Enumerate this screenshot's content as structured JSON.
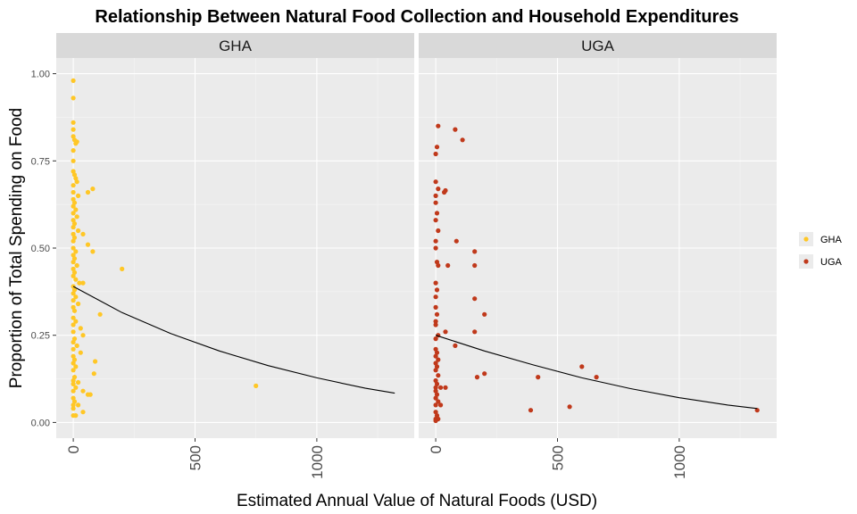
{
  "chart_data": {
    "type": "scatter",
    "title": "Relationship Between Natural Food Collection and Household Expenditures",
    "xlabel": "Estimated Annual Value of Natural Foods (USD)",
    "ylabel": "Proportion of Total Spending on Food",
    "xlim": [
      -70,
      1400
    ],
    "ylim": [
      -0.045,
      1.045
    ],
    "x_ticks": [
      0,
      500,
      1000
    ],
    "y_ticks": [
      0,
      0.25,
      0.5,
      0.75,
      1.0
    ],
    "x_tick_labels": [
      "0",
      "500",
      "1000"
    ],
    "y_tick_labels": [
      "0.00",
      "0.25",
      "0.50",
      "0.75",
      "1.00"
    ],
    "grid": true,
    "legend_position": "right",
    "legend": [
      {
        "name": "GHA",
        "color": "#FFC726"
      },
      {
        "name": "UGA",
        "color": "#C0391B"
      }
    ],
    "panels": [
      {
        "name": "GHA",
        "color": "#FFC726",
        "points": [
          [
            0,
            0.98
          ],
          [
            0,
            0.93
          ],
          [
            0,
            0.86
          ],
          [
            0,
            0.84
          ],
          [
            0,
            0.82
          ],
          [
            5,
            0.81
          ],
          [
            10,
            0.8
          ],
          [
            15,
            0.805
          ],
          [
            0,
            0.78
          ],
          [
            0,
            0.75
          ],
          [
            0,
            0.72
          ],
          [
            5,
            0.71
          ],
          [
            10,
            0.7
          ],
          [
            15,
            0.69
          ],
          [
            0,
            0.68
          ],
          [
            0,
            0.66
          ],
          [
            20,
            0.65
          ],
          [
            60,
            0.66
          ],
          [
            80,
            0.67
          ],
          [
            0,
            0.64
          ],
          [
            5,
            0.63
          ],
          [
            0,
            0.62
          ],
          [
            10,
            0.61
          ],
          [
            0,
            0.6
          ],
          [
            15,
            0.59
          ],
          [
            0,
            0.58
          ],
          [
            5,
            0.57
          ],
          [
            0,
            0.56
          ],
          [
            20,
            0.55
          ],
          [
            0,
            0.54
          ],
          [
            40,
            0.54
          ],
          [
            5,
            0.53
          ],
          [
            0,
            0.52
          ],
          [
            60,
            0.51
          ],
          [
            0,
            0.5
          ],
          [
            10,
            0.49
          ],
          [
            80,
            0.49
          ],
          [
            0,
            0.48
          ],
          [
            5,
            0.47
          ],
          [
            0,
            0.46
          ],
          [
            15,
            0.45
          ],
          [
            0,
            0.44
          ],
          [
            200,
            0.44
          ],
          [
            5,
            0.43
          ],
          [
            0,
            0.42
          ],
          [
            10,
            0.41
          ],
          [
            25,
            0.4
          ],
          [
            40,
            0.4
          ],
          [
            0,
            0.39
          ],
          [
            5,
            0.38
          ],
          [
            0,
            0.37
          ],
          [
            10,
            0.36
          ],
          [
            0,
            0.35
          ],
          [
            20,
            0.34
          ],
          [
            0,
            0.33
          ],
          [
            5,
            0.32
          ],
          [
            110,
            0.31
          ],
          [
            0,
            0.3
          ],
          [
            10,
            0.29
          ],
          [
            0,
            0.28
          ],
          [
            30,
            0.27
          ],
          [
            0,
            0.26
          ],
          [
            40,
            0.25
          ],
          [
            5,
            0.24
          ],
          [
            0,
            0.23
          ],
          [
            15,
            0.22
          ],
          [
            0,
            0.21
          ],
          [
            30,
            0.2
          ],
          [
            0,
            0.19
          ],
          [
            5,
            0.18
          ],
          [
            90,
            0.175
          ],
          [
            0,
            0.17
          ],
          [
            10,
            0.16
          ],
          [
            0,
            0.15
          ],
          [
            85,
            0.14
          ],
          [
            5,
            0.13
          ],
          [
            0,
            0.12
          ],
          [
            20,
            0.115
          ],
          [
            0,
            0.11
          ],
          [
            750,
            0.105
          ],
          [
            10,
            0.1
          ],
          [
            0,
            0.09
          ],
          [
            40,
            0.09
          ],
          [
            60,
            0.08
          ],
          [
            70,
            0.08
          ],
          [
            0,
            0.07
          ],
          [
            5,
            0.06
          ],
          [
            0,
            0.05
          ],
          [
            20,
            0.05
          ],
          [
            0,
            0.04
          ],
          [
            40,
            0.03
          ],
          [
            0,
            0.02
          ],
          [
            10,
            0.02
          ]
        ],
        "trend": [
          [
            0,
            0.39
          ],
          [
            200,
            0.315
          ],
          [
            400,
            0.255
          ],
          [
            600,
            0.205
          ],
          [
            800,
            0.163
          ],
          [
            1000,
            0.128
          ],
          [
            1200,
            0.098
          ],
          [
            1320,
            0.084
          ]
        ]
      },
      {
        "name": "UGA",
        "color": "#C0391B",
        "points": [
          [
            10,
            0.85
          ],
          [
            80,
            0.84
          ],
          [
            110,
            0.81
          ],
          [
            5,
            0.79
          ],
          [
            0,
            0.77
          ],
          [
            0,
            0.69
          ],
          [
            10,
            0.67
          ],
          [
            40,
            0.665
          ],
          [
            35,
            0.66
          ],
          [
            0,
            0.65
          ],
          [
            0,
            0.63
          ],
          [
            5,
            0.6
          ],
          [
            0,
            0.58
          ],
          [
            10,
            0.55
          ],
          [
            0,
            0.52
          ],
          [
            85,
            0.52
          ],
          [
            0,
            0.5
          ],
          [
            160,
            0.49
          ],
          [
            5,
            0.46
          ],
          [
            10,
            0.45
          ],
          [
            50,
            0.45
          ],
          [
            160,
            0.45
          ],
          [
            0,
            0.4
          ],
          [
            5,
            0.38
          ],
          [
            0,
            0.36
          ],
          [
            160,
            0.355
          ],
          [
            0,
            0.33
          ],
          [
            5,
            0.31
          ],
          [
            200,
            0.31
          ],
          [
            0,
            0.29
          ],
          [
            0,
            0.28
          ],
          [
            40,
            0.26
          ],
          [
            160,
            0.26
          ],
          [
            10,
            0.25
          ],
          [
            0,
            0.24
          ],
          [
            80,
            0.22
          ],
          [
            0,
            0.21
          ],
          [
            5,
            0.2
          ],
          [
            0,
            0.19
          ],
          [
            10,
            0.18
          ],
          [
            0,
            0.17
          ],
          [
            5,
            0.16
          ],
          [
            0,
            0.15
          ],
          [
            200,
            0.14
          ],
          [
            10,
            0.135
          ],
          [
            170,
            0.13
          ],
          [
            420,
            0.13
          ],
          [
            660,
            0.13
          ],
          [
            600,
            0.16
          ],
          [
            0,
            0.12
          ],
          [
            5,
            0.11
          ],
          [
            0,
            0.1
          ],
          [
            20,
            0.1
          ],
          [
            40,
            0.1
          ],
          [
            0,
            0.09
          ],
          [
            5,
            0.08
          ],
          [
            0,
            0.07
          ],
          [
            10,
            0.06
          ],
          [
            0,
            0.05
          ],
          [
            20,
            0.05
          ],
          [
            550,
            0.045
          ],
          [
            390,
            0.035
          ],
          [
            1320,
            0.035
          ],
          [
            0,
            0.03
          ],
          [
            5,
            0.02
          ],
          [
            0,
            0.01
          ],
          [
            10,
            0.01
          ],
          [
            0,
            0.005
          ]
        ],
        "trend": [
          [
            0,
            0.25
          ],
          [
            200,
            0.205
          ],
          [
            400,
            0.165
          ],
          [
            600,
            0.128
          ],
          [
            800,
            0.097
          ],
          [
            1000,
            0.071
          ],
          [
            1200,
            0.05
          ],
          [
            1320,
            0.04
          ]
        ]
      }
    ]
  }
}
